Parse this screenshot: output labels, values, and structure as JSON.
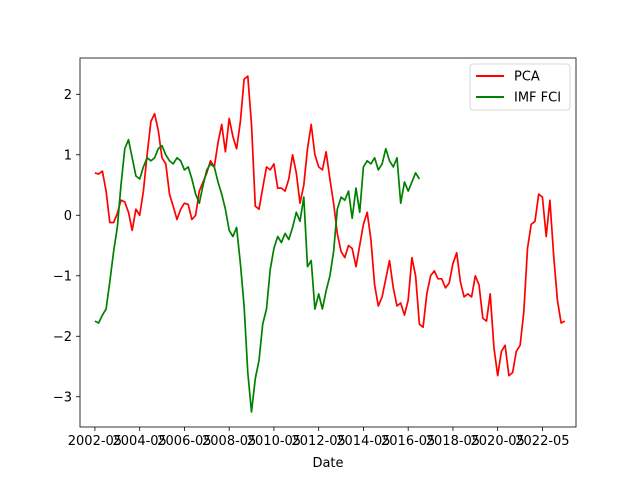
{
  "chart_data": {
    "type": "line",
    "title": "",
    "xlabel": "Date",
    "ylabel": "",
    "xlim": [
      "2001-09",
      "2023-11"
    ],
    "ylim": [
      -3.5,
      2.6
    ],
    "x_ticks": [
      "2002-05",
      "2004-05",
      "2006-05",
      "2008-05",
      "2010-05",
      "2012-05",
      "2014-05",
      "2016-05",
      "2018-05",
      "2020-05",
      "2022-05"
    ],
    "y_ticks": [
      -3,
      -2,
      -1,
      0,
      1,
      2
    ],
    "grid": false,
    "legend": "top-right",
    "series": [
      {
        "name": "PCA",
        "color": "#ff0000",
        "points": [
          [
            "2002-05",
            0.7
          ],
          [
            "2002-07",
            0.68
          ],
          [
            "2002-09",
            0.73
          ],
          [
            "2002-11",
            0.4
          ],
          [
            "2003-01",
            -0.12
          ],
          [
            "2003-03",
            -0.12
          ],
          [
            "2003-05",
            0.03
          ],
          [
            "2003-07",
            0.25
          ],
          [
            "2003-09",
            0.22
          ],
          [
            "2003-11",
            0.05
          ],
          [
            "2004-01",
            -0.25
          ],
          [
            "2004-03",
            0.1
          ],
          [
            "2004-05",
            0.0
          ],
          [
            "2004-07",
            0.4
          ],
          [
            "2004-09",
            1.0
          ],
          [
            "2004-11",
            1.55
          ],
          [
            "2005-01",
            1.68
          ],
          [
            "2005-03",
            1.4
          ],
          [
            "2005-05",
            0.95
          ],
          [
            "2005-07",
            0.85
          ],
          [
            "2005-09",
            0.35
          ],
          [
            "2005-11",
            0.15
          ],
          [
            "2006-01",
            -0.07
          ],
          [
            "2006-03",
            0.1
          ],
          [
            "2006-05",
            0.2
          ],
          [
            "2006-07",
            0.18
          ],
          [
            "2006-09",
            -0.07
          ],
          [
            "2006-11",
            0.0
          ],
          [
            "2007-01",
            0.4
          ],
          [
            "2007-03",
            0.55
          ],
          [
            "2007-05",
            0.7
          ],
          [
            "2007-07",
            0.9
          ],
          [
            "2007-09",
            0.8
          ],
          [
            "2007-11",
            1.2
          ],
          [
            "2008-01",
            1.5
          ],
          [
            "2008-03",
            1.05
          ],
          [
            "2008-05",
            1.6
          ],
          [
            "2008-07",
            1.3
          ],
          [
            "2008-09",
            1.1
          ],
          [
            "2008-11",
            1.55
          ],
          [
            "2009-01",
            2.25
          ],
          [
            "2009-03",
            2.3
          ],
          [
            "2009-05",
            1.5
          ],
          [
            "2009-07",
            0.15
          ],
          [
            "2009-09",
            0.1
          ],
          [
            "2009-11",
            0.45
          ],
          [
            "2010-01",
            0.8
          ],
          [
            "2010-03",
            0.75
          ],
          [
            "2010-05",
            0.85
          ],
          [
            "2010-07",
            0.45
          ],
          [
            "2010-09",
            0.45
          ],
          [
            "2010-11",
            0.4
          ],
          [
            "2011-01",
            0.6
          ],
          [
            "2011-03",
            1.0
          ],
          [
            "2011-05",
            0.7
          ],
          [
            "2011-07",
            0.2
          ],
          [
            "2011-09",
            0.5
          ],
          [
            "2011-11",
            1.1
          ],
          [
            "2012-01",
            1.5
          ],
          [
            "2012-03",
            1.0
          ],
          [
            "2012-05",
            0.8
          ],
          [
            "2012-07",
            0.75
          ],
          [
            "2012-09",
            1.05
          ],
          [
            "2012-11",
            0.6
          ],
          [
            "2013-01",
            0.2
          ],
          [
            "2013-03",
            -0.3
          ],
          [
            "2013-05",
            -0.6
          ],
          [
            "2013-07",
            -0.7
          ],
          [
            "2013-09",
            -0.5
          ],
          [
            "2013-11",
            -0.55
          ],
          [
            "2014-01",
            -0.85
          ],
          [
            "2014-03",
            -0.5
          ],
          [
            "2014-05",
            -0.15
          ],
          [
            "2014-07",
            0.05
          ],
          [
            "2014-09",
            -0.4
          ],
          [
            "2014-11",
            -1.15
          ],
          [
            "2015-01",
            -1.5
          ],
          [
            "2015-03",
            -1.35
          ],
          [
            "2015-05",
            -1.05
          ],
          [
            "2015-07",
            -0.75
          ],
          [
            "2015-09",
            -1.2
          ],
          [
            "2015-11",
            -1.5
          ],
          [
            "2016-01",
            -1.45
          ],
          [
            "2016-03",
            -1.65
          ],
          [
            "2016-05",
            -1.4
          ],
          [
            "2016-07",
            -0.7
          ],
          [
            "2016-09",
            -1.0
          ],
          [
            "2016-11",
            -1.8
          ],
          [
            "2017-01",
            -1.85
          ],
          [
            "2017-03",
            -1.3
          ],
          [
            "2017-05",
            -1.0
          ],
          [
            "2017-07",
            -0.92
          ],
          [
            "2017-09",
            -1.05
          ],
          [
            "2017-11",
            -1.05
          ],
          [
            "2018-01",
            -1.2
          ],
          [
            "2018-03",
            -1.12
          ],
          [
            "2018-05",
            -0.8
          ],
          [
            "2018-07",
            -0.62
          ],
          [
            "2018-09",
            -1.1
          ],
          [
            "2018-11",
            -1.35
          ],
          [
            "2019-01",
            -1.3
          ],
          [
            "2019-03",
            -1.35
          ],
          [
            "2019-05",
            -1.0
          ],
          [
            "2019-07",
            -1.15
          ],
          [
            "2019-09",
            -1.7
          ],
          [
            "2019-11",
            -1.75
          ],
          [
            "2020-01",
            -1.3
          ],
          [
            "2020-03",
            -2.2
          ],
          [
            "2020-05",
            -2.65
          ],
          [
            "2020-07",
            -2.25
          ],
          [
            "2020-09",
            -2.15
          ],
          [
            "2020-11",
            -2.65
          ],
          [
            "2021-01",
            -2.6
          ],
          [
            "2021-03",
            -2.25
          ],
          [
            "2021-05",
            -2.15
          ],
          [
            "2021-07",
            -1.6
          ],
          [
            "2021-09",
            -0.55
          ],
          [
            "2021-11",
            -0.15
          ],
          [
            "2022-01",
            -0.1
          ],
          [
            "2022-03",
            0.35
          ],
          [
            "2022-05",
            0.3
          ],
          [
            "2022-07",
            -0.35
          ],
          [
            "2022-09",
            0.25
          ],
          [
            "2022-11",
            -0.65
          ],
          [
            "2023-01",
            -1.4
          ],
          [
            "2023-03",
            -1.78
          ],
          [
            "2023-05",
            -1.75
          ]
        ]
      },
      {
        "name": "IMF FCI",
        "color": "#008000",
        "points": [
          [
            "2002-05",
            -1.75
          ],
          [
            "2002-07",
            -1.78
          ],
          [
            "2002-09",
            -1.65
          ],
          [
            "2002-11",
            -1.55
          ],
          [
            "2003-01",
            -1.1
          ],
          [
            "2003-03",
            -0.6
          ],
          [
            "2003-05",
            -0.2
          ],
          [
            "2003-07",
            0.5
          ],
          [
            "2003-09",
            1.1
          ],
          [
            "2003-11",
            1.25
          ],
          [
            "2004-01",
            0.95
          ],
          [
            "2004-03",
            0.65
          ],
          [
            "2004-05",
            0.6
          ],
          [
            "2004-07",
            0.8
          ],
          [
            "2004-09",
            0.95
          ],
          [
            "2004-11",
            0.9
          ],
          [
            "2005-01",
            0.95
          ],
          [
            "2005-03",
            1.1
          ],
          [
            "2005-05",
            1.15
          ],
          [
            "2005-07",
            1.0
          ],
          [
            "2005-09",
            0.9
          ],
          [
            "2005-11",
            0.85
          ],
          [
            "2006-01",
            0.95
          ],
          [
            "2006-03",
            0.9
          ],
          [
            "2006-05",
            0.75
          ],
          [
            "2006-07",
            0.8
          ],
          [
            "2006-09",
            0.6
          ],
          [
            "2006-11",
            0.35
          ],
          [
            "2007-01",
            0.2
          ],
          [
            "2007-03",
            0.5
          ],
          [
            "2007-05",
            0.75
          ],
          [
            "2007-07",
            0.85
          ],
          [
            "2007-09",
            0.8
          ],
          [
            "2007-11",
            0.55
          ],
          [
            "2008-01",
            0.35
          ],
          [
            "2008-03",
            0.1
          ],
          [
            "2008-05",
            -0.25
          ],
          [
            "2008-07",
            -0.35
          ],
          [
            "2008-09",
            -0.2
          ],
          [
            "2008-11",
            -0.8
          ],
          [
            "2009-01",
            -1.5
          ],
          [
            "2009-03",
            -2.6
          ],
          [
            "2009-05",
            -3.25
          ],
          [
            "2009-07",
            -2.7
          ],
          [
            "2009-09",
            -2.4
          ],
          [
            "2009-11",
            -1.8
          ],
          [
            "2010-01",
            -1.55
          ],
          [
            "2010-03",
            -0.9
          ],
          [
            "2010-05",
            -0.55
          ],
          [
            "2010-07",
            -0.35
          ],
          [
            "2010-09",
            -0.45
          ],
          [
            "2010-11",
            -0.3
          ],
          [
            "2011-01",
            -0.4
          ],
          [
            "2011-03",
            -0.2
          ],
          [
            "2011-05",
            0.05
          ],
          [
            "2011-07",
            -0.1
          ],
          [
            "2011-09",
            0.3
          ],
          [
            "2011-11",
            -0.85
          ],
          [
            "2012-01",
            -0.75
          ],
          [
            "2012-03",
            -1.55
          ],
          [
            "2012-05",
            -1.3
          ],
          [
            "2012-07",
            -1.55
          ],
          [
            "2012-09",
            -1.25
          ],
          [
            "2012-11",
            -1.0
          ],
          [
            "2013-01",
            -0.6
          ],
          [
            "2013-03",
            0.1
          ],
          [
            "2013-05",
            0.3
          ],
          [
            "2013-07",
            0.25
          ],
          [
            "2013-09",
            0.4
          ],
          [
            "2013-11",
            -0.05
          ],
          [
            "2014-01",
            0.45
          ],
          [
            "2014-03",
            0.05
          ],
          [
            "2014-05",
            0.8
          ],
          [
            "2014-07",
            0.9
          ],
          [
            "2014-09",
            0.85
          ],
          [
            "2014-11",
            0.95
          ],
          [
            "2015-01",
            0.75
          ],
          [
            "2015-03",
            0.85
          ],
          [
            "2015-05",
            1.1
          ],
          [
            "2015-07",
            0.9
          ],
          [
            "2015-09",
            0.8
          ],
          [
            "2015-11",
            0.95
          ],
          [
            "2016-01",
            0.2
          ],
          [
            "2016-03",
            0.55
          ],
          [
            "2016-05",
            0.4
          ],
          [
            "2016-07",
            0.55
          ],
          [
            "2016-09",
            0.7
          ],
          [
            "2016-11",
            0.6
          ]
        ]
      }
    ]
  }
}
